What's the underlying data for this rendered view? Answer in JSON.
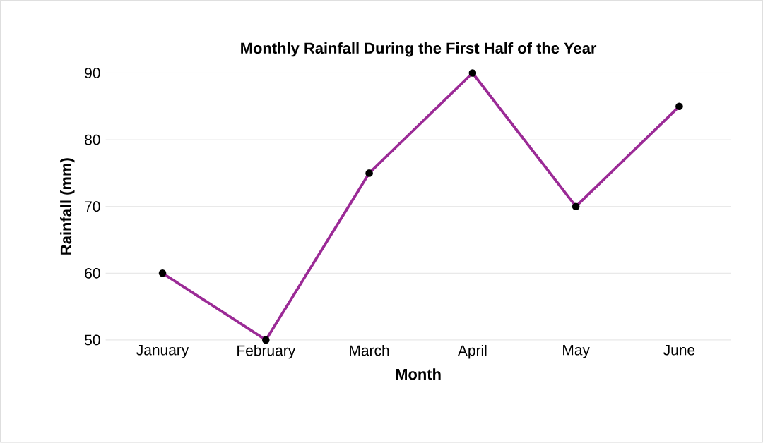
{
  "chart_data": {
    "type": "line",
    "title": "Monthly Rainfall During the First Half of the Year",
    "xlabel": "Month",
    "ylabel": "Rainfall (mm)",
    "categories": [
      "January",
      "February",
      "March",
      "April",
      "May",
      "June"
    ],
    "series": [
      {
        "color": "#9b2a96",
        "values": [
          60,
          50,
          75,
          90,
          70,
          85
        ]
      }
    ],
    "ylim": [
      50,
      90
    ],
    "yticks": [
      50,
      60,
      70,
      80,
      90
    ],
    "grid": "y",
    "marker": "circle",
    "line_style": "solid"
  }
}
